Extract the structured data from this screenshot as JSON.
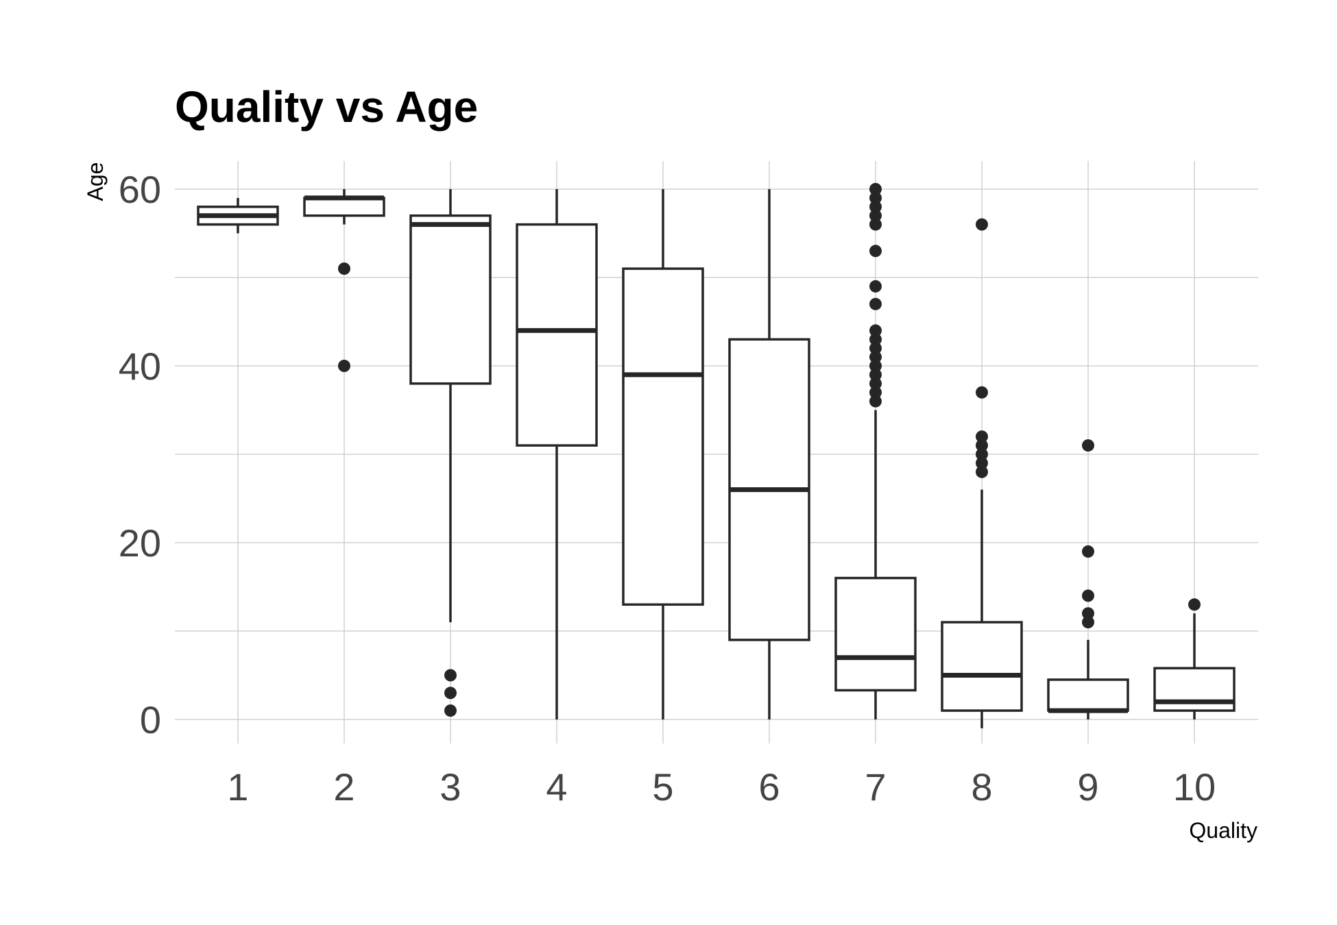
{
  "chart_data": {
    "type": "box",
    "title": "Quality vs Age",
    "xlabel": "Quality",
    "ylabel": "Age",
    "categories": [
      "1",
      "2",
      "3",
      "4",
      "5",
      "6",
      "7",
      "8",
      "9",
      "10"
    ],
    "ylim": [
      -3,
      63
    ],
    "yticks": [
      0,
      20,
      40,
      60
    ],
    "grid": true,
    "legend": "none",
    "colors": {
      "box_stroke": "#262626",
      "grid": "#d0d0d0",
      "tick_text": "#444444",
      "box_fill": "#ffffff"
    },
    "boxes": [
      {
        "category": "1",
        "whisker_low": 55,
        "q1": 56,
        "median": 57,
        "q3": 58,
        "whisker_high": 59,
        "outliers": []
      },
      {
        "category": "2",
        "whisker_low": 56,
        "q1": 57,
        "median": 59,
        "q3": 59,
        "whisker_high": 60,
        "outliers": [
          51,
          40
        ]
      },
      {
        "category": "3",
        "whisker_low": 11,
        "q1": 38,
        "median": 56,
        "q3": 57,
        "whisker_high": 60,
        "outliers": [
          5,
          3,
          1
        ]
      },
      {
        "category": "4",
        "whisker_low": 0,
        "q1": 31,
        "median": 44,
        "q3": 56,
        "whisker_high": 60,
        "outliers": []
      },
      {
        "category": "5",
        "whisker_low": 0,
        "q1": 13,
        "median": 39,
        "q3": 51,
        "whisker_high": 60,
        "outliers": []
      },
      {
        "category": "6",
        "whisker_low": 0,
        "q1": 9,
        "median": 26,
        "q3": 43,
        "whisker_high": 60,
        "outliers": []
      },
      {
        "category": "7",
        "whisker_low": 0,
        "q1": 3.3,
        "median": 7,
        "q3": 16,
        "whisker_high": 35,
        "outliers": [
          60,
          59,
          58,
          57,
          56,
          53,
          49,
          47,
          44,
          43,
          42,
          41,
          40,
          39,
          38,
          37,
          36
        ]
      },
      {
        "category": "8",
        "whisker_low": -1,
        "q1": 1,
        "median": 5,
        "q3": 11,
        "whisker_high": 26,
        "outliers": [
          56,
          37,
          32,
          31,
          30,
          29,
          28
        ]
      },
      {
        "category": "9",
        "whisker_low": 0,
        "q1": 1,
        "median": 1,
        "q3": 4.5,
        "whisker_high": 9,
        "outliers": [
          31,
          19,
          14,
          12,
          11
        ]
      },
      {
        "category": "10",
        "whisker_low": 0,
        "q1": 1,
        "median": 2,
        "q3": 5.8,
        "whisker_high": 12,
        "outliers": [
          13
        ]
      }
    ]
  }
}
